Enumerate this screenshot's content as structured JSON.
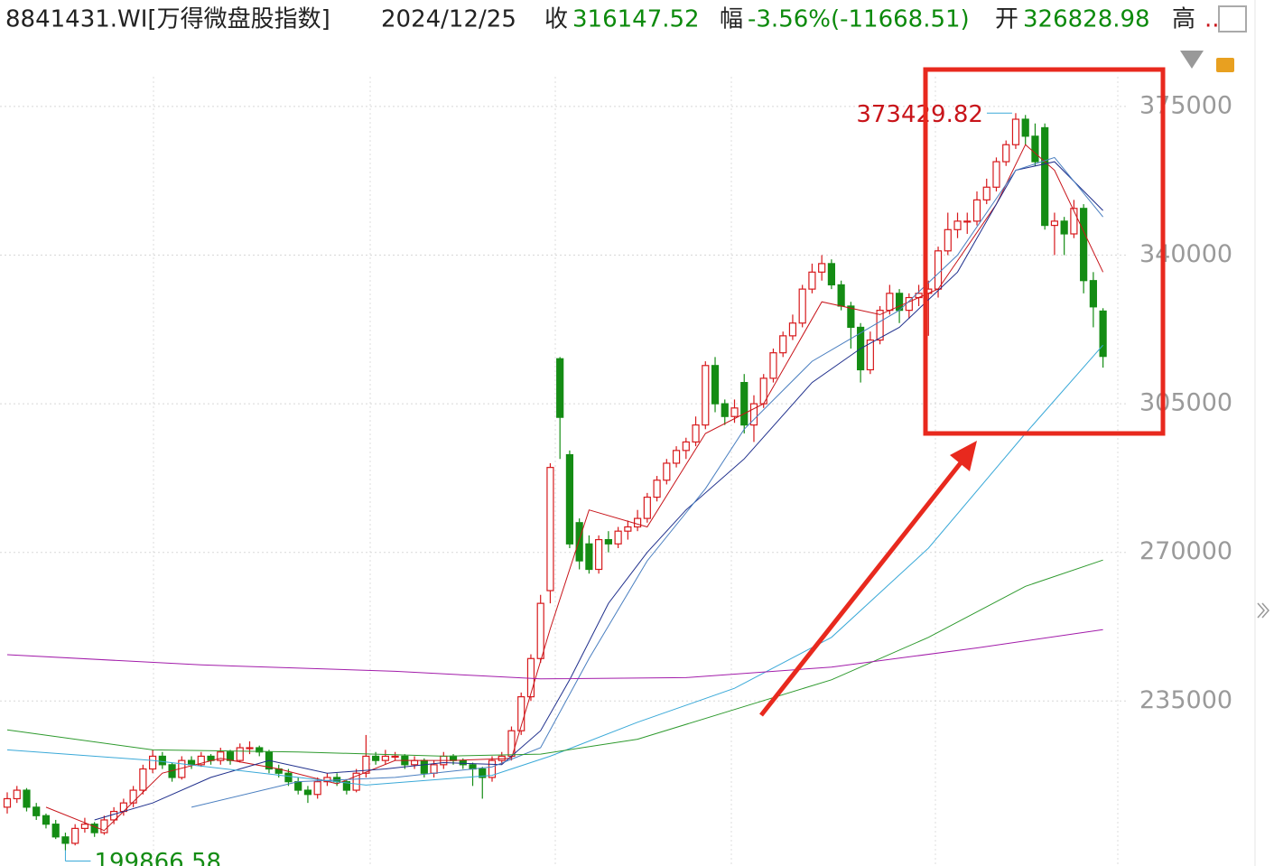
{
  "header": {
    "code": "8841431.WI[万得微盘股指数]",
    "date": "2024/12/25",
    "close_label": "收",
    "change_label": "幅",
    "change": "-3.56%(-11668.51)",
    "open_label": "开",
    "high_label": "高",
    "high": ".."
  },
  "chart_data": {
    "type": "candlestick",
    "up_color": "#d7191c",
    "down_color": "#148c14",
    "ylim": [
      197000,
      382000
    ],
    "yticks": [
      235000,
      270000,
      305000,
      340000,
      375000
    ],
    "grid": true,
    "high_label_color": "#c8141a",
    "low_label_color": "#148c14",
    "high_label_index": 104,
    "low_label_index": 6,
    "candles": [
      [
        210000,
        213500,
        208500,
        212000
      ],
      [
        212000,
        215000,
        211000,
        214000
      ],
      [
        214000,
        214500,
        209000,
        210000
      ],
      [
        210000,
        211000,
        207000,
        208000
      ],
      [
        208000,
        208500,
        205000,
        206000
      ],
      [
        206000,
        207000,
        202500,
        203000
      ],
      [
        203000,
        204000,
        199866.58,
        201500
      ],
      [
        201500,
        206000,
        201000,
        205000
      ],
      [
        205000,
        207500,
        204000,
        206000
      ],
      [
        206000,
        206500,
        203000,
        204000
      ],
      [
        204000,
        208000,
        203500,
        207000
      ],
      [
        207000,
        210000,
        206000,
        209000
      ],
      [
        209000,
        212000,
        208000,
        211000
      ],
      [
        211000,
        215000,
        210000,
        214000
      ],
      [
        214000,
        220000,
        213000,
        219000
      ],
      [
        219000,
        223500,
        218000,
        222000
      ],
      [
        222000,
        223000,
        219000,
        220000
      ],
      [
        220000,
        220500,
        216000,
        217000
      ],
      [
        217000,
        222000,
        216500,
        221000
      ],
      [
        221000,
        222000,
        219000,
        220000
      ],
      [
        220000,
        223000,
        219500,
        222000
      ],
      [
        222000,
        222500,
        220000,
        221000
      ],
      [
        221000,
        224000,
        220000,
        223000
      ],
      [
        223000,
        223500,
        220000,
        221000
      ],
      [
        221000,
        225000,
        220500,
        224000
      ],
      [
        224000,
        225500,
        222500,
        224000
      ],
      [
        224000,
        224500,
        222000,
        223000
      ],
      [
        223000,
        223500,
        218000,
        219000
      ],
      [
        219000,
        220000,
        217000,
        218000
      ],
      [
        218000,
        219000,
        215000,
        216000
      ],
      [
        216000,
        217000,
        213000,
        214000
      ],
      [
        214000,
        215000,
        211000,
        213000
      ],
      [
        213000,
        217000,
        212000,
        216000
      ],
      [
        216000,
        218000,
        215000,
        217000
      ],
      [
        217000,
        218000,
        215000,
        216000
      ],
      [
        216000,
        216500,
        213000,
        214000
      ],
      [
        214000,
        219000,
        213500,
        218000
      ],
      [
        218000,
        227000,
        217000,
        222000
      ],
      [
        222000,
        223000,
        220000,
        221000
      ],
      [
        221000,
        223500,
        220000,
        222000
      ],
      [
        222000,
        223000,
        221000,
        222000
      ],
      [
        222000,
        222500,
        219000,
        220000
      ],
      [
        220000,
        222000,
        219000,
        221000
      ],
      [
        221000,
        221500,
        217000,
        218000
      ],
      [
        218000,
        221000,
        217000,
        220000
      ],
      [
        220000,
        223000,
        219000,
        222000
      ],
      [
        222000,
        222500,
        220000,
        221000
      ],
      [
        221000,
        221500,
        219000,
        220000
      ],
      [
        220000,
        220500,
        215000,
        219000
      ],
      [
        219000,
        219500,
        212000,
        217000
      ],
      [
        217000,
        222000,
        216000,
        221000
      ],
      [
        221000,
        223000,
        220000,
        222000
      ],
      [
        222000,
        229000,
        221000,
        228000
      ],
      [
        228000,
        237000,
        227000,
        236000
      ],
      [
        236000,
        246000,
        235000,
        245000
      ],
      [
        245000,
        260000,
        244000,
        258000
      ],
      [
        261000,
        291000,
        258000,
        290000
      ],
      [
        315600,
        316000,
        292000,
        301800
      ],
      [
        293000,
        294000,
        271000,
        272000
      ],
      [
        277000,
        278000,
        266000,
        268000
      ],
      [
        272000,
        274000,
        265000,
        266000
      ],
      [
        266000,
        274000,
        265000,
        273000
      ],
      [
        273000,
        275000,
        270000,
        272000
      ],
      [
        272000,
        276000,
        271000,
        275000
      ],
      [
        275000,
        277500,
        273000,
        276000
      ],
      [
        276000,
        280000,
        275000,
        278000
      ],
      [
        278000,
        284000,
        277000,
        283000
      ],
      [
        283000,
        288000,
        282000,
        287000
      ],
      [
        287000,
        292000,
        286000,
        291000
      ],
      [
        291000,
        295000,
        290000,
        294000
      ],
      [
        294000,
        297000,
        292000,
        296000
      ],
      [
        296000,
        302000,
        295000,
        300000
      ],
      [
        300000,
        315000,
        299000,
        314000
      ],
      [
        314000,
        316000,
        303000,
        305000
      ],
      [
        305000,
        306000,
        300000,
        302000
      ],
      [
        302000,
        306000,
        300500,
        304000
      ],
      [
        310000,
        312000,
        298000,
        300000
      ],
      [
        300000,
        307000,
        296000,
        305000
      ],
      [
        305000,
        312000,
        304000,
        311000
      ],
      [
        311000,
        318000,
        310000,
        317000
      ],
      [
        317000,
        322000,
        316000,
        321000
      ],
      [
        321000,
        326000,
        320000,
        324000
      ],
      [
        324000,
        333000,
        323000,
        332000
      ],
      [
        332000,
        338000,
        331000,
        336000
      ],
      [
        336000,
        340000,
        334000,
        338000
      ],
      [
        338000,
        339000,
        332000,
        333000
      ],
      [
        333000,
        334000,
        327000,
        328000
      ],
      [
        328000,
        329000,
        318000,
        323000
      ],
      [
        323000,
        324000,
        310000,
        313000
      ],
      [
        313000,
        322000,
        312000,
        320000
      ],
      [
        320000,
        328000,
        319000,
        327000
      ],
      [
        327000,
        333000,
        326000,
        331000
      ],
      [
        331000,
        332000,
        324000,
        327000
      ],
      [
        327000,
        331000,
        325000,
        330000
      ],
      [
        330000,
        333000,
        328000,
        331000
      ],
      [
        331000,
        334000,
        321000,
        332000
      ],
      [
        332000,
        342000,
        330000,
        341000
      ],
      [
        341000,
        350000,
        340000,
        346000
      ],
      [
        346000,
        350000,
        344000,
        348000
      ],
      [
        348000,
        350000,
        345000,
        348000
      ],
      [
        348000,
        355000,
        347000,
        353000
      ],
      [
        353000,
        358000,
        352000,
        356000
      ],
      [
        356000,
        363000,
        355000,
        362000
      ],
      [
        362000,
        367000,
        361000,
        366000
      ],
      [
        366000,
        373429.82,
        365000,
        372000
      ],
      [
        372000,
        373000,
        366000,
        368000
      ],
      [
        368000,
        371000,
        361000,
        362000
      ],
      [
        370000,
        371000,
        346000,
        347000
      ],
      [
        347000,
        350000,
        340000,
        348000
      ],
      [
        348000,
        349000,
        340000,
        345000
      ],
      [
        345000,
        353000,
        344000,
        351000
      ],
      [
        351000,
        352000,
        331000,
        334000
      ],
      [
        334000,
        336000,
        323000,
        327816.03
      ],
      [
        326828.98,
        327500,
        313500,
        316147.52
      ]
    ],
    "lines": [
      {
        "color": "#c8141a",
        "x": [
          4,
          10,
          16,
          22,
          28,
          34,
          40,
          46,
          52,
          56,
          60,
          66,
          72,
          78,
          84,
          90,
          96,
          102,
          105,
          108,
          113
        ],
        "values": [
          210000,
          204500,
          218000,
          221500,
          219000,
          215500,
          221000,
          221000,
          221500,
          252000,
          280000,
          276000,
          298000,
          305000,
          329000,
          326000,
          332000,
          352000,
          366000,
          360000,
          336000
        ]
      },
      {
        "color": "#1f2f8c",
        "x": [
          9,
          15,
          21,
          27,
          33,
          39,
          45,
          51,
          55,
          58,
          62,
          66,
          70,
          76,
          83,
          88,
          92,
          98,
          104,
          108,
          113
        ],
        "values": [
          207000,
          211000,
          217000,
          221000,
          218000,
          219000,
          220500,
          220000,
          228000,
          240000,
          258000,
          270000,
          280000,
          292000,
          310000,
          318000,
          323000,
          336000,
          360000,
          362000,
          350500
        ]
      },
      {
        "color": "#4a7fc0",
        "x": [
          19,
          30,
          40,
          50,
          55,
          60,
          66,
          72,
          76,
          83,
          92,
          98,
          104,
          108,
          113
        ],
        "values": [
          210000,
          216000,
          217000,
          219500,
          224000,
          245000,
          268000,
          285000,
          299000,
          315000,
          327000,
          340000,
          360000,
          363000,
          349000
        ]
      },
      {
        "color": "#3aa9d8",
        "x": [
          0,
          15,
          30,
          37,
          50,
          56,
          65,
          75,
          85,
          95,
          105,
          113
        ],
        "values": [
          223500,
          221000,
          217000,
          215200,
          217500,
          222000,
          230000,
          238000,
          250000,
          271000,
          298000,
          318800
        ]
      },
      {
        "color": "#2e9a2e",
        "x": [
          0,
          15,
          30,
          45,
          55,
          65,
          75,
          85,
          95,
          105,
          113
        ],
        "values": [
          228200,
          223500,
          223000,
          222000,
          222500,
          226000,
          233000,
          240000,
          250000,
          262000,
          268200
        ]
      },
      {
        "color": "#a21caa",
        "x": [
          0,
          20,
          40,
          55,
          70,
          85,
          100,
          113
        ],
        "values": [
          245900,
          243500,
          242000,
          240200,
          240500,
          243000,
          247500,
          251800
        ]
      }
    ]
  }
}
